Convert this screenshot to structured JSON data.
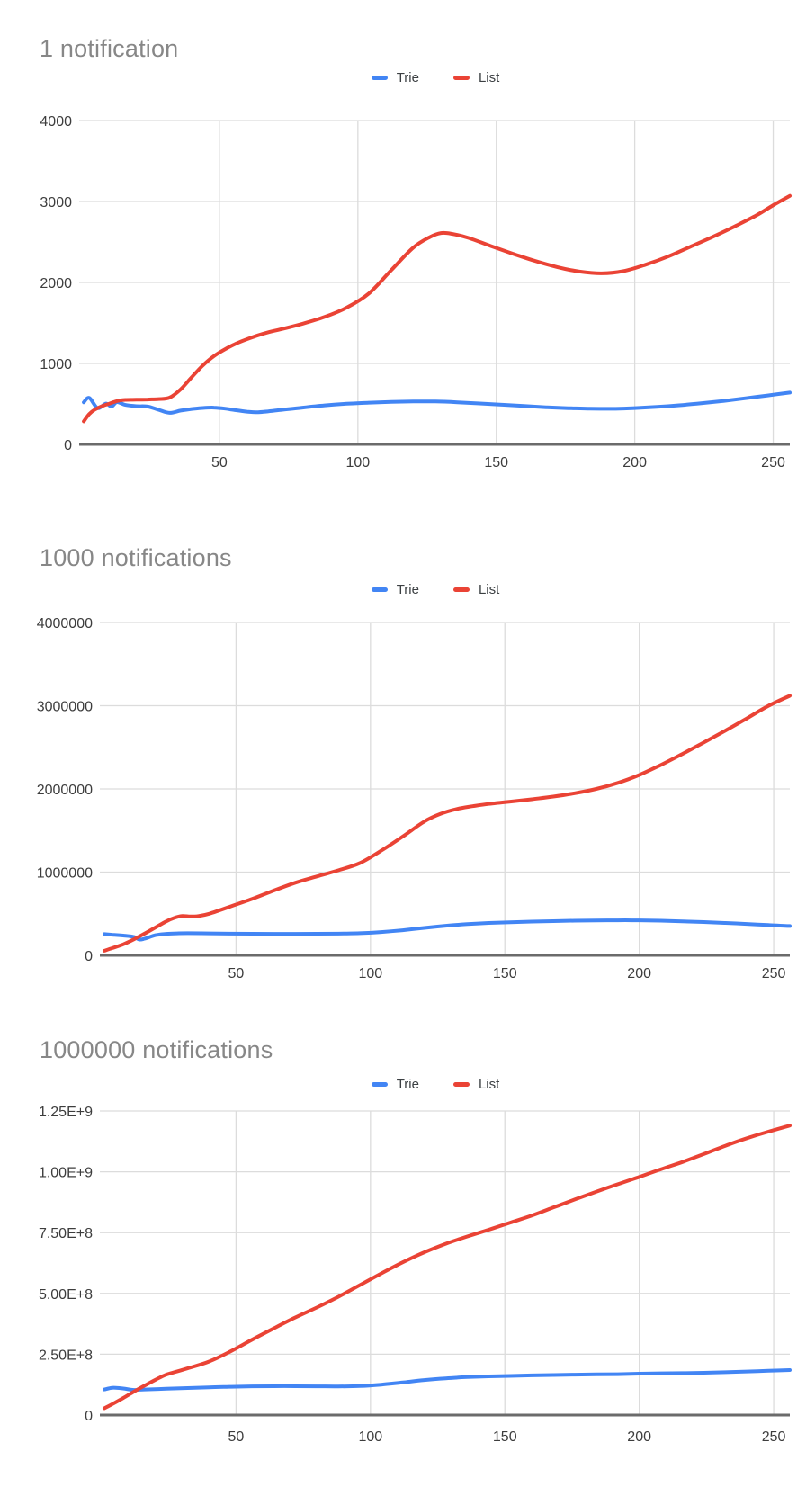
{
  "colors": {
    "trie": "#4285f4",
    "list": "#ea4335"
  },
  "chart_data": [
    {
      "type": "line",
      "title": "1 notification",
      "xlabel": "",
      "ylabel": "",
      "grid": true,
      "legend_position": "top",
      "xlim": [
        0,
        256
      ],
      "ylim": [
        0,
        4000
      ],
      "x_ticks": [
        50,
        100,
        150,
        200,
        250
      ],
      "x_tick_labels": [
        "50",
        "100",
        "150",
        "200",
        "250"
      ],
      "y_ticks": [
        0,
        1000,
        2000,
        3000,
        4000
      ],
      "y_tick_labels": [
        "0",
        "1000",
        "2000",
        "3000",
        "4000"
      ],
      "series": [
        {
          "name": "Trie",
          "color": "#4285f4",
          "points": [
            [
              1,
              520
            ],
            [
              3,
              575
            ],
            [
              6,
              448
            ],
            [
              9,
              505
            ],
            [
              11,
              468
            ],
            [
              13,
              522
            ],
            [
              16,
              488
            ],
            [
              20,
              472
            ],
            [
              24,
              468
            ],
            [
              28,
              428
            ],
            [
              32,
              390
            ],
            [
              36,
              418
            ],
            [
              40,
              438
            ],
            [
              44,
              450
            ],
            [
              48,
              455
            ],
            [
              52,
              442
            ],
            [
              56,
              422
            ],
            [
              60,
              405
            ],
            [
              64,
              398
            ],
            [
              72,
              425
            ],
            [
              80,
              455
            ],
            [
              88,
              482
            ],
            [
              96,
              502
            ],
            [
              104,
              515
            ],
            [
              112,
              524
            ],
            [
              120,
              530
            ],
            [
              128,
              530
            ],
            [
              136,
              520
            ],
            [
              144,
              506
            ],
            [
              152,
              490
            ],
            [
              160,
              474
            ],
            [
              168,
              459
            ],
            [
              176,
              448
            ],
            [
              184,
              441
            ],
            [
              192,
              440
            ],
            [
              200,
              449
            ],
            [
              208,
              463
            ],
            [
              216,
              483
            ],
            [
              224,
              508
            ],
            [
              232,
              537
            ],
            [
              240,
              570
            ],
            [
              248,
              605
            ],
            [
              256,
              640
            ]
          ]
        },
        {
          "name": "List",
          "color": "#ea4335",
          "points": [
            [
              1,
              285
            ],
            [
              3,
              375
            ],
            [
              5,
              430
            ],
            [
              8,
              478
            ],
            [
              10,
              500
            ],
            [
              12,
              525
            ],
            [
              14,
              542
            ],
            [
              16,
              550
            ],
            [
              20,
              552
            ],
            [
              24,
              555
            ],
            [
              28,
              560
            ],
            [
              32,
              578
            ],
            [
              36,
              680
            ],
            [
              40,
              830
            ],
            [
              44,
              975
            ],
            [
              48,
              1090
            ],
            [
              52,
              1175
            ],
            [
              56,
              1245
            ],
            [
              60,
              1300
            ],
            [
              64,
              1348
            ],
            [
              68,
              1388
            ],
            [
              72,
              1420
            ],
            [
              80,
              1490
            ],
            [
              88,
              1575
            ],
            [
              96,
              1690
            ],
            [
              104,
              1865
            ],
            [
              112,
              2150
            ],
            [
              120,
              2430
            ],
            [
              126,
              2560
            ],
            [
              130,
              2610
            ],
            [
              134,
              2600
            ],
            [
              140,
              2550
            ],
            [
              148,
              2450
            ],
            [
              156,
              2355
            ],
            [
              164,
              2265
            ],
            [
              172,
              2190
            ],
            [
              180,
              2135
            ],
            [
              188,
              2112
            ],
            [
              196,
              2140
            ],
            [
              204,
              2220
            ],
            [
              212,
              2320
            ],
            [
              220,
              2440
            ],
            [
              228,
              2560
            ],
            [
              236,
              2690
            ],
            [
              244,
              2830
            ],
            [
              250,
              2955
            ],
            [
              256,
              3070
            ]
          ]
        }
      ]
    },
    {
      "type": "line",
      "title": "1000 notifications",
      "xlabel": "",
      "ylabel": "",
      "grid": true,
      "legend_position": "top",
      "xlim": [
        0,
        256
      ],
      "ylim": [
        0,
        4000000
      ],
      "x_ticks": [
        50,
        100,
        150,
        200,
        250
      ],
      "x_tick_labels": [
        "50",
        "100",
        "150",
        "200",
        "250"
      ],
      "y_ticks": [
        0,
        1000000,
        2000000,
        3000000,
        4000000
      ],
      "y_tick_labels": [
        "0",
        "1000000",
        "2000000",
        "3000000",
        "4000000"
      ],
      "series": [
        {
          "name": "Trie",
          "color": "#4285f4",
          "points": [
            [
              1,
              255000
            ],
            [
              4,
              248000
            ],
            [
              8,
              238000
            ],
            [
              12,
              222000
            ],
            [
              14,
              190000
            ],
            [
              16,
              200000
            ],
            [
              20,
              242000
            ],
            [
              24,
              258000
            ],
            [
              28,
              264000
            ],
            [
              32,
              266000
            ],
            [
              40,
              264000
            ],
            [
              48,
              261000
            ],
            [
              56,
              259000
            ],
            [
              64,
              258000
            ],
            [
              72,
              258000
            ],
            [
              80,
              259000
            ],
            [
              88,
              261000
            ],
            [
              96,
              266000
            ],
            [
              104,
              280000
            ],
            [
              112,
              302000
            ],
            [
              120,
              330000
            ],
            [
              128,
              356000
            ],
            [
              136,
              375000
            ],
            [
              144,
              389000
            ],
            [
              152,
              398000
            ],
            [
              160,
              405000
            ],
            [
              168,
              411000
            ],
            [
              176,
              416000
            ],
            [
              184,
              419000
            ],
            [
              192,
              421000
            ],
            [
              200,
              420000
            ],
            [
              208,
              416000
            ],
            [
              216,
              409000
            ],
            [
              224,
              400000
            ],
            [
              232,
              389000
            ],
            [
              240,
              377000
            ],
            [
              248,
              364000
            ],
            [
              256,
              352000
            ]
          ]
        },
        {
          "name": "List",
          "color": "#ea4335",
          "points": [
            [
              1,
              55000
            ],
            [
              4,
              88000
            ],
            [
              8,
              132000
            ],
            [
              12,
              192000
            ],
            [
              16,
              262000
            ],
            [
              20,
              335000
            ],
            [
              24,
              408000
            ],
            [
              27,
              450000
            ],
            [
              30,
              472000
            ],
            [
              33,
              467000
            ],
            [
              36,
              472000
            ],
            [
              40,
              500000
            ],
            [
              48,
              588000
            ],
            [
              56,
              678000
            ],
            [
              64,
              778000
            ],
            [
              72,
              872000
            ],
            [
              80,
              948000
            ],
            [
              88,
              1022000
            ],
            [
              96,
              1108000
            ],
            [
              104,
              1258000
            ],
            [
              112,
              1428000
            ],
            [
              120,
              1608000
            ],
            [
              126,
              1700000
            ],
            [
              132,
              1758000
            ],
            [
              138,
              1792000
            ],
            [
              144,
              1820000
            ],
            [
              152,
              1848000
            ],
            [
              160,
              1876000
            ],
            [
              168,
              1908000
            ],
            [
              176,
              1948000
            ],
            [
              184,
              2000000
            ],
            [
              192,
              2072000
            ],
            [
              200,
              2168000
            ],
            [
              208,
              2288000
            ],
            [
              216,
              2420000
            ],
            [
              224,
              2558000
            ],
            [
              232,
              2700000
            ],
            [
              240,
              2848000
            ],
            [
              248,
              2998000
            ],
            [
              256,
              3120000
            ]
          ]
        }
      ]
    },
    {
      "type": "line",
      "title": "1000000 notifications",
      "xlabel": "",
      "ylabel": "",
      "grid": true,
      "legend_position": "top",
      "xlim": [
        0,
        256
      ],
      "ylim": [
        0,
        1250000000
      ],
      "x_ticks": [
        50,
        100,
        150,
        200,
        250
      ],
      "x_tick_labels": [
        "50",
        "100",
        "150",
        "200",
        "250"
      ],
      "y_ticks": [
        0,
        250000000,
        500000000,
        750000000,
        1000000000,
        1250000000
      ],
      "y_tick_labels": [
        "0",
        "2.50E+8",
        "5.00E+8",
        "7.50E+8",
        "1.00E+9",
        "1.25E+9"
      ],
      "series": [
        {
          "name": "Trie",
          "color": "#4285f4",
          "points": [
            [
              1,
              105000000
            ],
            [
              4,
              112000000
            ],
            [
              8,
              109000000
            ],
            [
              12,
              103000000
            ],
            [
              16,
              105000000
            ],
            [
              24,
              108000000
            ],
            [
              32,
              111000000
            ],
            [
              40,
              114000000
            ],
            [
              48,
              116000000
            ],
            [
              56,
              118000000
            ],
            [
              64,
              118500000
            ],
            [
              72,
              118500000
            ],
            [
              80,
              118000000
            ],
            [
              88,
              117500000
            ],
            [
              96,
              119000000
            ],
            [
              104,
              125000000
            ],
            [
              112,
              134000000
            ],
            [
              120,
              144000000
            ],
            [
              128,
              151000000
            ],
            [
              136,
              156000000
            ],
            [
              144,
              159000000
            ],
            [
              152,
              161000000
            ],
            [
              160,
              163000000
            ],
            [
              168,
              164500000
            ],
            [
              176,
              166000000
            ],
            [
              184,
              167000000
            ],
            [
              192,
              168000000
            ],
            [
              200,
              170000000
            ],
            [
              208,
              171500000
            ],
            [
              216,
              172500000
            ],
            [
              224,
              174000000
            ],
            [
              232,
              176000000
            ],
            [
              240,
              179000000
            ],
            [
              248,
              182000000
            ],
            [
              256,
              185000000
            ]
          ]
        },
        {
          "name": "List",
          "color": "#ea4335",
          "points": [
            [
              1,
              28000000
            ],
            [
              4,
              45000000
            ],
            [
              8,
              70000000
            ],
            [
              12,
              96000000
            ],
            [
              16,
              121000000
            ],
            [
              20,
              145000000
            ],
            [
              24,
              166000000
            ],
            [
              28,
              179000000
            ],
            [
              32,
              192000000
            ],
            [
              40,
              220000000
            ],
            [
              48,
              262000000
            ],
            [
              56,
              310000000
            ],
            [
              64,
              356000000
            ],
            [
              72,
              401000000
            ],
            [
              80,
              442000000
            ],
            [
              88,
              486000000
            ],
            [
              96,
              534000000
            ],
            [
              104,
              582000000
            ],
            [
              112,
              628000000
            ],
            [
              120,
              669000000
            ],
            [
              128,
              704000000
            ],
            [
              136,
              734000000
            ],
            [
              144,
              762000000
            ],
            [
              152,
              791000000
            ],
            [
              160,
              820000000
            ],
            [
              168,
              853000000
            ],
            [
              176,
              886000000
            ],
            [
              184,
              918000000
            ],
            [
              192,
              949000000
            ],
            [
              200,
              979000000
            ],
            [
              208,
              1010000000
            ],
            [
              216,
              1040000000
            ],
            [
              224,
              1073000000
            ],
            [
              232,
              1107000000
            ],
            [
              240,
              1138000000
            ],
            [
              248,
              1165000000
            ],
            [
              256,
              1190000000
            ]
          ]
        }
      ]
    }
  ]
}
